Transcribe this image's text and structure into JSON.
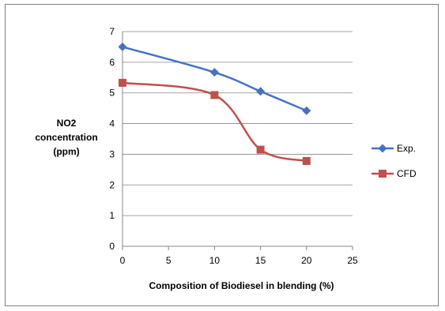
{
  "chart_data": {
    "type": "line",
    "title": "",
    "xlabel": "Composition of Biodiesel in blending (%)",
    "ylabel_lines": [
      "NO2",
      "concentration",
      "(ppm)"
    ],
    "xlim": [
      0,
      25
    ],
    "ylim": [
      0,
      7
    ],
    "xticks": [
      0,
      5,
      10,
      15,
      20,
      25
    ],
    "yticks": [
      0,
      1,
      2,
      3,
      4,
      5,
      6,
      7
    ],
    "grid": "horizontal",
    "legend_position": "right",
    "series": [
      {
        "name": "Exp.",
        "color": "#4472c4",
        "marker": "diamond",
        "x": [
          0,
          10,
          15,
          20
        ],
        "y": [
          6.5,
          5.67,
          5.05,
          4.42
        ]
      },
      {
        "name": "CFD",
        "color": "#c0504d",
        "marker": "square",
        "x": [
          0,
          10,
          15,
          20
        ],
        "y": [
          5.33,
          4.93,
          3.15,
          2.78
        ]
      }
    ]
  }
}
